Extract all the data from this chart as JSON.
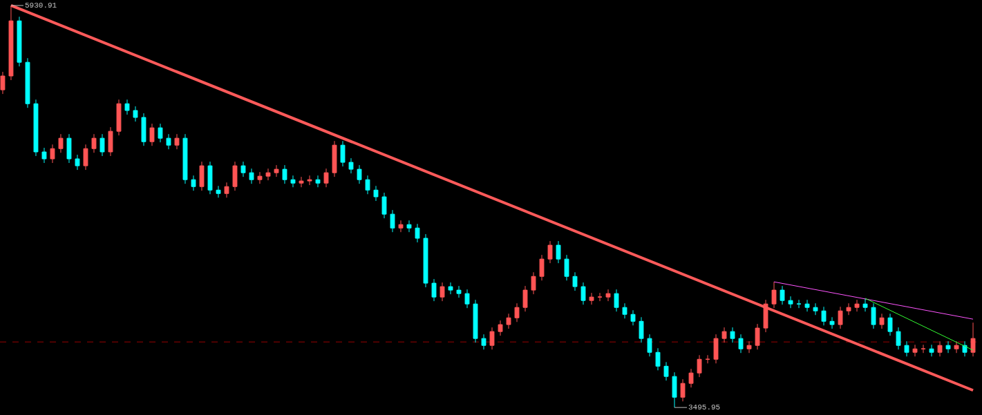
{
  "chart_data": {
    "type": "candlestick",
    "categories": [
      null,
      null,
      null,
      null,
      null,
      null,
      null,
      null,
      null,
      null,
      null,
      null,
      null,
      null,
      null,
      null,
      null,
      null,
      null,
      null,
      null,
      null,
      null,
      null,
      null,
      null,
      null,
      null,
      null,
      null,
      null,
      null,
      null,
      null,
      null,
      null,
      null,
      null,
      null,
      null,
      null,
      null,
      null,
      null,
      null,
      null,
      null,
      null,
      null,
      null,
      null,
      null,
      null,
      null,
      null,
      null,
      null,
      null,
      null,
      null,
      null,
      null,
      null,
      null,
      null,
      null,
      null,
      null,
      null,
      null,
      null,
      null,
      null,
      null,
      null,
      null,
      null,
      null,
      null,
      null,
      null,
      null,
      null,
      null,
      null,
      null,
      null,
      null,
      null,
      null,
      null,
      null,
      null,
      null,
      null,
      null,
      null,
      null,
      null,
      null,
      null,
      null,
      null,
      null,
      null,
      null,
      null,
      null,
      null,
      null,
      null,
      null,
      null,
      null,
      null,
      null,
      null,
      null
    ],
    "ohlc": [
      [
        5420,
        5529,
        5395,
        5504
      ],
      [
        5504,
        5930.91,
        5479,
        5838
      ],
      [
        5838,
        5863,
        5562,
        5587
      ],
      [
        5587,
        5612,
        5311,
        5336
      ],
      [
        5336,
        5361,
        5019,
        5044
      ],
      [
        5044,
        5069,
        4977,
        5002
      ],
      [
        5002,
        5089,
        4977,
        5064
      ],
      [
        5064,
        5152,
        5039,
        5127
      ],
      [
        5127,
        5152,
        4977,
        5002
      ],
      [
        5002,
        5027,
        4935,
        4960
      ],
      [
        4960,
        5089,
        4935,
        5064
      ],
      [
        5064,
        5152,
        5039,
        5127
      ],
      [
        5127,
        5152,
        5019,
        5044
      ],
      [
        5044,
        5194,
        5019,
        5169
      ],
      [
        5169,
        5361,
        5144,
        5336
      ],
      [
        5336,
        5361,
        5270,
        5295
      ],
      [
        5295,
        5320,
        5228,
        5253
      ],
      [
        5253,
        5278,
        5081,
        5106
      ],
      [
        5106,
        5215,
        5081,
        5190
      ],
      [
        5190,
        5215,
        5102,
        5127
      ],
      [
        5127,
        5152,
        5060,
        5085
      ],
      [
        5085,
        5152,
        5060,
        5127
      ],
      [
        5127,
        5152,
        4851,
        4876
      ],
      [
        4876,
        4901,
        4809,
        4834
      ],
      [
        4834,
        4985,
        4809,
        4960
      ],
      [
        4960,
        4985,
        4788,
        4813
      ],
      [
        4813,
        4838,
        4767,
        4792
      ],
      [
        4792,
        4859,
        4767,
        4834
      ],
      [
        4834,
        4985,
        4809,
        4960
      ],
      [
        4960,
        4985,
        4893,
        4918
      ],
      [
        4918,
        4943,
        4851,
        4876
      ],
      [
        4876,
        4922,
        4851,
        4897
      ],
      [
        4897,
        4943,
        4872,
        4918
      ],
      [
        4918,
        4964,
        4893,
        4939
      ],
      [
        4939,
        4964,
        4851,
        4876
      ],
      [
        4876,
        4901,
        4830,
        4855
      ],
      [
        4855,
        4893,
        4830,
        4868
      ],
      [
        4868,
        4901,
        4843,
        4876
      ],
      [
        4876,
        4901,
        4830,
        4855
      ],
      [
        4855,
        4943,
        4830,
        4918
      ],
      [
        4918,
        5110,
        4893,
        5085
      ],
      [
        5085,
        5110,
        4956,
        4981
      ],
      [
        4981,
        5006,
        4914,
        4939
      ],
      [
        4939,
        4964,
        4851,
        4876
      ],
      [
        4876,
        4901,
        4788,
        4813
      ],
      [
        4813,
        4838,
        4747,
        4772
      ],
      [
        4772,
        4797,
        4642,
        4667
      ],
      [
        4667,
        4692,
        4558,
        4583
      ],
      [
        4583,
        4629,
        4558,
        4604
      ],
      [
        4604,
        4629,
        4558,
        4583
      ],
      [
        4583,
        4608,
        4496,
        4521
      ],
      [
        4521,
        4546,
        4224,
        4249
      ],
      [
        4249,
        4274,
        4140,
        4165
      ],
      [
        4165,
        4253,
        4140,
        4228
      ],
      [
        4228,
        4253,
        4182,
        4207
      ],
      [
        4207,
        4232,
        4161,
        4186
      ],
      [
        4186,
        4211,
        4098,
        4123
      ],
      [
        4123,
        4148,
        3889,
        3914
      ],
      [
        3914,
        3939,
        3847,
        3872
      ],
      [
        3872,
        3981,
        3847,
        3956
      ],
      [
        3956,
        4023,
        3931,
        3998
      ],
      [
        3998,
        4064,
        3973,
        4039
      ],
      [
        4039,
        4127,
        4014,
        4102
      ],
      [
        4102,
        4232,
        4077,
        4207
      ],
      [
        4207,
        4315,
        4182,
        4290
      ],
      [
        4290,
        4420,
        4265,
        4395
      ],
      [
        4395,
        4504,
        4370,
        4479
      ],
      [
        4479,
        4504,
        4370,
        4395
      ],
      [
        4395,
        4420,
        4265,
        4290
      ],
      [
        4290,
        4315,
        4203,
        4228
      ],
      [
        4228,
        4253,
        4119,
        4144
      ],
      [
        4144,
        4190,
        4119,
        4165
      ],
      [
        4165,
        4190,
        4140,
        4165
      ],
      [
        4165,
        4211,
        4140,
        4186
      ],
      [
        4186,
        4211,
        4077,
        4102
      ],
      [
        4102,
        4127,
        4035,
        4060
      ],
      [
        4060,
        4085,
        3993,
        4018
      ],
      [
        4018,
        4043,
        3889,
        3914
      ],
      [
        3914,
        3939,
        3805,
        3830
      ],
      [
        3830,
        3855,
        3721,
        3746
      ],
      [
        3746,
        3771,
        3659,
        3684
      ],
      [
        3684,
        3709,
        3495.95,
        3558
      ],
      [
        3558,
        3667,
        3533,
        3642
      ],
      [
        3642,
        3730,
        3617,
        3705
      ],
      [
        3705,
        3813,
        3680,
        3788
      ],
      [
        3788,
        3813,
        3763,
        3788
      ],
      [
        3788,
        3939,
        3763,
        3914
      ],
      [
        3914,
        3981,
        3889,
        3956
      ],
      [
        3956,
        3981,
        3889,
        3914
      ],
      [
        3914,
        3939,
        3826,
        3851
      ],
      [
        3851,
        3897,
        3826,
        3872
      ],
      [
        3872,
        4002,
        3847,
        3977
      ],
      [
        3977,
        4148,
        3952,
        4123
      ],
      [
        4123,
        4257,
        4098,
        4207
      ],
      [
        4207,
        4232,
        4119,
        4144
      ],
      [
        4144,
        4169,
        4098,
        4123
      ],
      [
        4123,
        4148,
        4098,
        4123
      ],
      [
        4123,
        4148,
        4077,
        4102
      ],
      [
        4102,
        4127,
        4056,
        4081
      ],
      [
        4081,
        4106,
        3993,
        4018
      ],
      [
        4018,
        4043,
        3973,
        3998
      ],
      [
        3998,
        4106,
        3973,
        4081
      ],
      [
        4081,
        4127,
        4056,
        4102
      ],
      [
        4102,
        4148,
        4077,
        4123
      ],
      [
        4123,
        4157,
        4077,
        4102
      ],
      [
        4102,
        4127,
        3973,
        3998
      ],
      [
        3998,
        4064,
        3973,
        4039
      ],
      [
        4039,
        4064,
        3931,
        3956
      ],
      [
        3956,
        3981,
        3847,
        3872
      ],
      [
        3872,
        3897,
        3805,
        3830
      ],
      [
        3830,
        3876,
        3805,
        3851
      ],
      [
        3851,
        3876,
        3826,
        3851
      ],
      [
        3851,
        3876,
        3805,
        3830
      ],
      [
        3830,
        3897,
        3805,
        3872
      ],
      [
        3872,
        3897,
        3826,
        3851
      ],
      [
        3851,
        3897,
        3826,
        3872
      ],
      [
        3872,
        3897,
        3805,
        3830
      ],
      [
        3830,
        4010,
        3805,
        3914
      ]
    ],
    "series": [
      {
        "type": "line",
        "color": "#ff5a5a",
        "values": [
          null,
          5930.91,
          null,
          null,
          null,
          null,
          null,
          null,
          null,
          null,
          null,
          null,
          null,
          null,
          null,
          null,
          null,
          null,
          null,
          null,
          null,
          null,
          null,
          null,
          null,
          null,
          null,
          null,
          null,
          null,
          null,
          null,
          null,
          null,
          null,
          null,
          null,
          null,
          null,
          null,
          null,
          null,
          null,
          null,
          null,
          null,
          null,
          null,
          null,
          null,
          null,
          null,
          null,
          null,
          null,
          null,
          null,
          null,
          null,
          null,
          null,
          null,
          null,
          null,
          null,
          null,
          null,
          null,
          null,
          null,
          null,
          null,
          null,
          null,
          null,
          null,
          null,
          null,
          null,
          null,
          null,
          null,
          null,
          null,
          null,
          null,
          null,
          null,
          null,
          null,
          null,
          null,
          null,
          null,
          null,
          null,
          null,
          null,
          null,
          null,
          null,
          null,
          null,
          null,
          null,
          null,
          null,
          null,
          null,
          null,
          null,
          null,
          null,
          null,
          null,
          null,
          null,
          3600
        ]
      },
      {
        "type": "line",
        "color": "#ff55ff",
        "values": [
          null,
          null,
          null,
          null,
          null,
          null,
          null,
          null,
          null,
          null,
          null,
          null,
          null,
          null,
          null,
          null,
          null,
          null,
          null,
          null,
          null,
          null,
          null,
          null,
          null,
          null,
          null,
          null,
          null,
          null,
          null,
          null,
          null,
          null,
          null,
          null,
          null,
          null,
          null,
          null,
          null,
          null,
          null,
          null,
          null,
          null,
          null,
          null,
          null,
          null,
          null,
          null,
          null,
          null,
          null,
          null,
          null,
          null,
          null,
          null,
          null,
          null,
          null,
          null,
          null,
          null,
          null,
          null,
          null,
          null,
          null,
          null,
          null,
          null,
          null,
          null,
          null,
          null,
          null,
          null,
          null,
          null,
          null,
          null,
          null,
          null,
          null,
          null,
          null,
          null,
          null,
          null,
          null,
          4257,
          null,
          null,
          null,
          null,
          null,
          null,
          null,
          null,
          null,
          null,
          null,
          null,
          null,
          null,
          null,
          null,
          null,
          null,
          null,
          null,
          null,
          null,
          null,
          4031
        ]
      },
      {
        "type": "line",
        "color": "#33ff33",
        "values": [
          null,
          null,
          null,
          null,
          null,
          null,
          null,
          null,
          null,
          null,
          null,
          null,
          null,
          null,
          null,
          null,
          null,
          null,
          null,
          null,
          null,
          null,
          null,
          null,
          null,
          null,
          null,
          null,
          null,
          null,
          null,
          null,
          null,
          null,
          null,
          null,
          null,
          null,
          null,
          null,
          null,
          null,
          null,
          null,
          null,
          null,
          null,
          null,
          null,
          null,
          null,
          null,
          null,
          null,
          null,
          null,
          null,
          null,
          null,
          null,
          null,
          null,
          null,
          null,
          null,
          null,
          null,
          null,
          null,
          null,
          null,
          null,
          null,
          null,
          null,
          null,
          null,
          null,
          null,
          null,
          null,
          null,
          null,
          null,
          null,
          null,
          null,
          null,
          null,
          null,
          null,
          null,
          null,
          null,
          null,
          null,
          null,
          null,
          null,
          null,
          null,
          null,
          null,
          null,
          4157,
          null,
          null,
          null,
          null,
          null,
          null,
          null,
          null,
          null,
          null,
          null,
          null,
          3843
        ]
      }
    ],
    "ref_lines": [
      {
        "axis": "y",
        "value": 3893,
        "color": "#990000",
        "line_style": "dashed"
      }
    ],
    "annotations": [
      "5930.91",
      "3495.95"
    ]
  }
}
